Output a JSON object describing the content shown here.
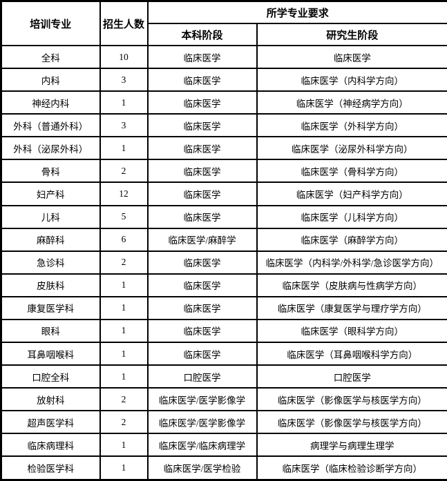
{
  "colors": {
    "border": "#000000",
    "background": "#ffffff",
    "text": "#000000"
  },
  "table": {
    "headers": {
      "specialty": "培训专业",
      "count": "招生人数",
      "group": "所学专业要求",
      "undergrad": "本科阶段",
      "graduate": "研究生阶段"
    },
    "rows": [
      {
        "specialty": "全科",
        "count": "10",
        "undergrad": "临床医学",
        "graduate": "临床医学"
      },
      {
        "specialty": "内科",
        "count": "3",
        "undergrad": "临床医学",
        "graduate": "临床医学（内科学方向）"
      },
      {
        "specialty": "神经内科",
        "count": "1",
        "undergrad": "临床医学",
        "graduate": "临床医学（神经病学方向）"
      },
      {
        "specialty": "外科（普通外科）",
        "count": "3",
        "undergrad": "临床医学",
        "graduate": "临床医学（外科学方向）"
      },
      {
        "specialty": "外科（泌尿外科）",
        "count": "1",
        "undergrad": "临床医学",
        "graduate": "临床医学（泌尿外科学方向）"
      },
      {
        "specialty": "骨科",
        "count": "2",
        "undergrad": "临床医学",
        "graduate": "临床医学（骨科学方向）"
      },
      {
        "specialty": "妇产科",
        "count": "12",
        "undergrad": "临床医学",
        "graduate": "临床医学（妇产科学方向）"
      },
      {
        "specialty": "儿科",
        "count": "5",
        "undergrad": "临床医学",
        "graduate": "临床医学（儿科学方向）"
      },
      {
        "specialty": "麻醉科",
        "count": "6",
        "undergrad": "临床医学/麻醉学",
        "graduate": "临床医学（麻醉学方向）"
      },
      {
        "specialty": "急诊科",
        "count": "2",
        "undergrad": "临床医学",
        "graduate": "临床医学（内科学/外科学/急诊医学方向）"
      },
      {
        "specialty": "皮肤科",
        "count": "1",
        "undergrad": "临床医学",
        "graduate": "临床医学（皮肤病与性病学方向）"
      },
      {
        "specialty": "康复医学科",
        "count": "1",
        "undergrad": "临床医学",
        "graduate": "临床医学（康复医学与理疗学方向）"
      },
      {
        "specialty": "眼科",
        "count": "1",
        "undergrad": "临床医学",
        "graduate": "临床医学（眼科学方向）"
      },
      {
        "specialty": "耳鼻咽喉科",
        "count": "1",
        "undergrad": "临床医学",
        "graduate": "临床医学（耳鼻咽喉科学方向）"
      },
      {
        "specialty": "口腔全科",
        "count": "1",
        "undergrad": "口腔医学",
        "graduate": "口腔医学"
      },
      {
        "specialty": "放射科",
        "count": "2",
        "undergrad": "临床医学/医学影像学",
        "graduate": "临床医学（影像医学与核医学方向）"
      },
      {
        "specialty": "超声医学科",
        "count": "2",
        "undergrad": "临床医学/医学影像学",
        "graduate": "临床医学（影像医学与核医学方向）"
      },
      {
        "specialty": "临床病理科",
        "count": "1",
        "undergrad": "临床医学/临床病理学",
        "graduate": "病理学与病理生理学"
      },
      {
        "specialty": "检验医学科",
        "count": "1",
        "undergrad": "临床医学/医学检验",
        "graduate": "临床医学（临床检验诊断学方向）"
      }
    ]
  }
}
